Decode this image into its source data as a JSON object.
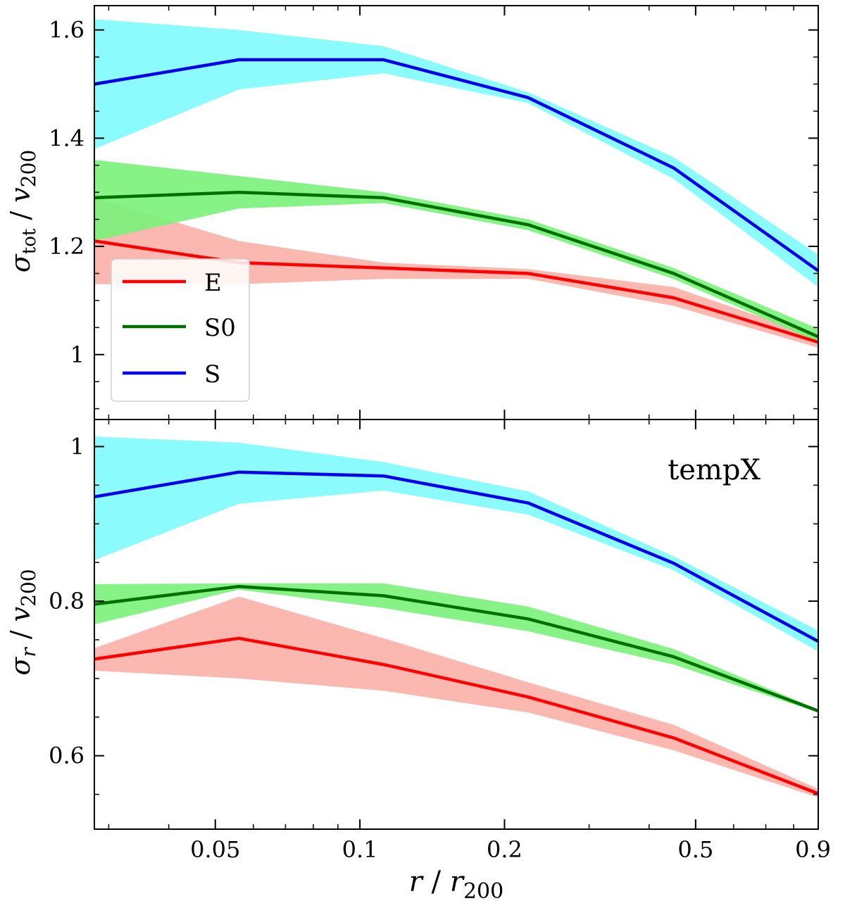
{
  "chart_data": [
    {
      "type": "line",
      "panel": "top",
      "ylabel": {
        "sym": "σ",
        "sub": "tot",
        "div": " / ",
        "v": "v",
        "vsub": "200"
      },
      "ylim": [
        0.88,
        1.645
      ],
      "yticks": [
        {
          "value": 1.0,
          "label": "1"
        },
        {
          "value": 1.2,
          "label": "1.2"
        },
        {
          "value": 1.4,
          "label": "1.4"
        },
        {
          "value": 1.6,
          "label": "1.6"
        }
      ],
      "yminor_step": 0.05,
      "legend_position": "lower-left",
      "x": [
        0.028,
        0.056,
        0.112,
        0.224,
        0.45,
        0.9
      ],
      "series": [
        {
          "name": "E",
          "key": "E",
          "values": [
            1.21,
            1.17,
            1.16,
            1.15,
            1.105,
            1.023
          ],
          "lower": [
            1.13,
            1.13,
            1.14,
            1.14,
            1.09,
            1.013
          ],
          "upper": [
            1.29,
            1.21,
            1.17,
            1.158,
            1.125,
            1.033
          ]
        },
        {
          "name": "S0",
          "key": "S0",
          "values": [
            1.29,
            1.3,
            1.29,
            1.24,
            1.15,
            1.033
          ],
          "lower": [
            1.21,
            1.27,
            1.28,
            1.23,
            1.14,
            1.023
          ],
          "upper": [
            1.36,
            1.33,
            1.3,
            1.25,
            1.16,
            1.048
          ]
        },
        {
          "name": "S",
          "key": "S",
          "values": [
            1.5,
            1.545,
            1.545,
            1.475,
            1.345,
            1.155
          ],
          "lower": [
            1.38,
            1.49,
            1.52,
            1.465,
            1.325,
            1.125
          ],
          "upper": [
            1.62,
            1.6,
            1.57,
            1.485,
            1.365,
            1.185
          ]
        }
      ]
    },
    {
      "type": "line",
      "panel": "bottom",
      "ylabel": {
        "sym": "σ",
        "sub": "r",
        "div": " / ",
        "v": "v",
        "vsub": "200"
      },
      "ylim": [
        0.505,
        1.035
      ],
      "yticks": [
        {
          "value": 0.6,
          "label": "0.6"
        },
        {
          "value": 0.8,
          "label": "0.8"
        },
        {
          "value": 1.0,
          "label": "1"
        }
      ],
      "yminor_step": 0.05,
      "annotation": "tempX",
      "x": [
        0.028,
        0.056,
        0.112,
        0.224,
        0.45,
        0.9
      ],
      "series": [
        {
          "name": "E",
          "key": "E",
          "values": [
            0.725,
            0.752,
            0.718,
            0.676,
            0.623,
            0.551
          ],
          "lower": [
            0.71,
            0.7,
            0.684,
            0.656,
            0.607,
            0.546
          ],
          "upper": [
            0.739,
            0.806,
            0.752,
            0.695,
            0.64,
            0.557
          ]
        },
        {
          "name": "S0",
          "key": "S0",
          "values": [
            0.796,
            0.819,
            0.807,
            0.777,
            0.728,
            0.658
          ],
          "lower": [
            0.77,
            0.815,
            0.791,
            0.761,
            0.718,
            0.656
          ],
          "upper": [
            0.822,
            0.823,
            0.823,
            0.793,
            0.738,
            0.66
          ]
        },
        {
          "name": "S",
          "key": "S",
          "values": [
            0.935,
            0.967,
            0.962,
            0.927,
            0.849,
            0.748
          ],
          "lower": [
            0.853,
            0.926,
            0.943,
            0.912,
            0.84,
            0.735
          ],
          "upper": [
            1.013,
            1.005,
            0.98,
            0.942,
            0.858,
            0.762
          ]
        }
      ]
    }
  ],
  "xaxis": {
    "label_var": "r",
    "label_div": " / ",
    "label_r": "r",
    "label_sub": "200",
    "xlim": [
      0.028,
      0.9
    ],
    "scale": "log",
    "ticks": [
      {
        "value": 0.05,
        "label": "0.05"
      },
      {
        "value": 0.1,
        "label": "0.1"
      },
      {
        "value": 0.2,
        "label": "0.2"
      },
      {
        "value": 0.5,
        "label": "0.5"
      },
      {
        "value": 0.9,
        "label": "0.9"
      }
    ],
    "minor_ticks": [
      0.03,
      0.04,
      0.06,
      0.07,
      0.08,
      0.09,
      0.3,
      0.4,
      0.6,
      0.7,
      0.8
    ]
  },
  "colors": {
    "E": {
      "line": "#ff0000",
      "band": "#fbb0a8"
    },
    "S0": {
      "line": "#007000",
      "band": "#7af27a"
    },
    "S": {
      "line": "#0000ee",
      "band": "#7ffbfd"
    }
  }
}
